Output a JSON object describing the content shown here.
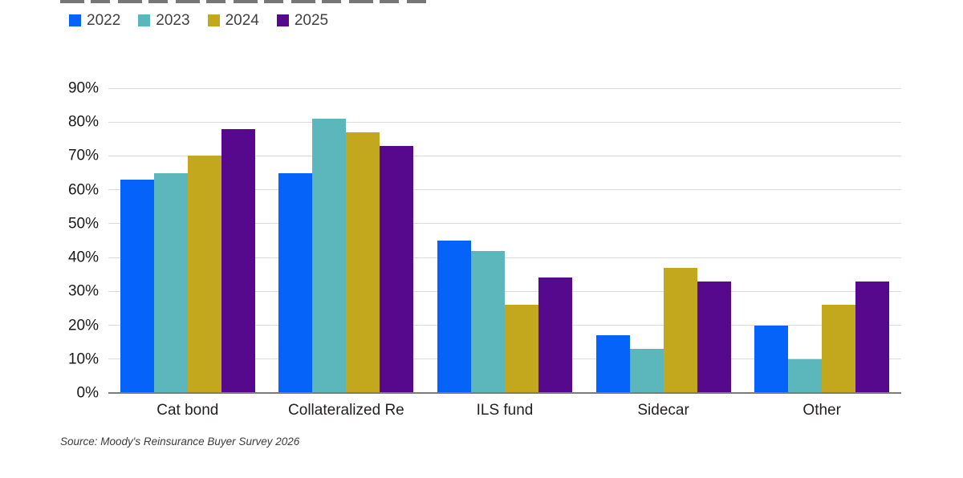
{
  "accent_colors": {
    "blue_2022": "#0563fa",
    "teal_2023": "#5cb7bd",
    "gold_2024": "#c3a81e",
    "purple_2025": "#56098c",
    "gridline": "#dcdcdc",
    "axis": "#7b7b7b"
  },
  "legend": {
    "items": [
      {
        "label": "2022",
        "color": "#0563fa"
      },
      {
        "label": "2023",
        "color": "#5cb7bd"
      },
      {
        "label": "2024",
        "color": "#c3a81e"
      },
      {
        "label": "2025",
        "color": "#56098c"
      }
    ]
  },
  "chart_data": {
    "type": "bar",
    "title": "",
    "categories": [
      "Cat bond",
      "Collateralized Re",
      "ILS fund",
      "Sidecar",
      "Other"
    ],
    "series": [
      {
        "name": "2022",
        "color": "#0563fa",
        "values": [
          63,
          65,
          45,
          17,
          20
        ]
      },
      {
        "name": "2023",
        "color": "#5cb7bd",
        "values": [
          65,
          81,
          42,
          13,
          10
        ]
      },
      {
        "name": "2024",
        "color": "#c3a81e",
        "values": [
          70,
          77,
          26,
          37,
          26
        ]
      },
      {
        "name": "2025",
        "color": "#56098c",
        "values": [
          78,
          73,
          34,
          33,
          33
        ]
      }
    ],
    "xlabel": "",
    "ylabel": "",
    "ylim": [
      0,
      90
    ],
    "y_tick_step": 10,
    "y_tick_suffix": "%",
    "grid": true,
    "legend_position": "top-left"
  },
  "source": {
    "text": "Source: Moody's Reinsurance Buyer Survey 2026"
  }
}
